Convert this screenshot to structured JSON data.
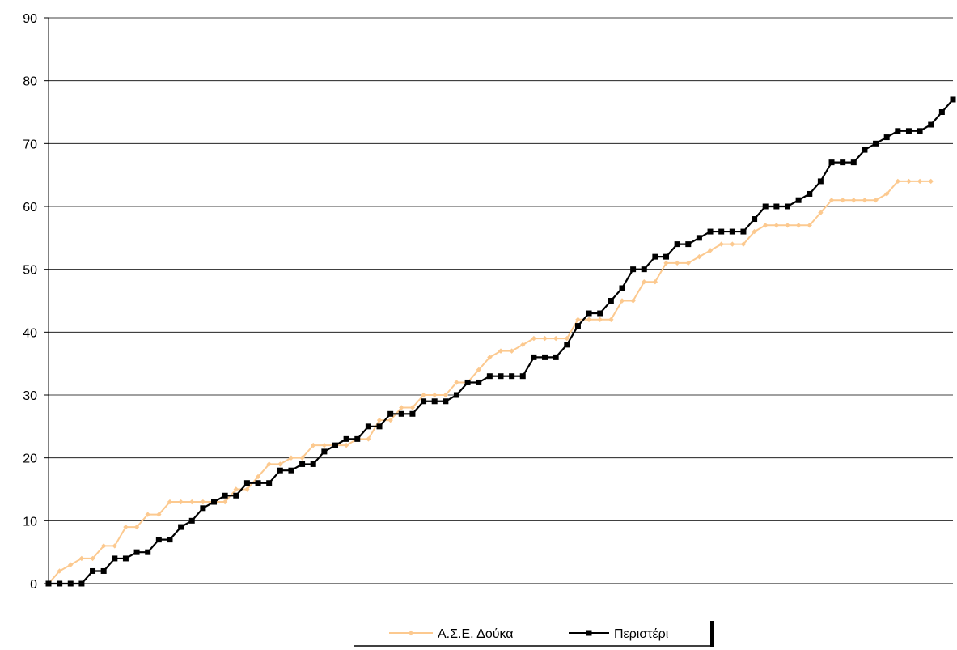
{
  "chart_data": {
    "type": "line",
    "title": "",
    "xlabel": "",
    "ylabel": "",
    "ylim": [
      0,
      90
    ],
    "yticks": [
      0,
      10,
      20,
      30,
      40,
      50,
      60,
      70,
      80,
      90
    ],
    "grid": "horizontal",
    "legend": "bottom-center",
    "series": [
      {
        "name": "Α.Σ.Ε. Δούκα",
        "color": "#fcc98f",
        "marker": "diamond",
        "values": [
          0,
          2,
          3,
          4,
          4,
          6,
          6,
          9,
          9,
          11,
          11,
          13,
          13,
          13,
          13,
          13,
          13,
          15,
          15,
          17,
          19,
          19,
          20,
          20,
          22,
          22,
          22,
          22,
          23,
          23,
          26,
          26,
          28,
          28,
          30,
          30,
          30,
          32,
          32,
          34,
          36,
          37,
          37,
          38,
          39,
          39,
          39,
          39,
          42,
          42,
          42,
          42,
          45,
          45,
          48,
          48,
          51,
          51,
          51,
          52,
          53,
          54,
          54,
          54,
          56,
          57,
          57,
          57,
          57,
          57,
          59,
          61,
          61,
          61,
          61,
          61,
          62,
          64,
          64,
          64,
          64
        ]
      },
      {
        "name": "Περιστέρι",
        "color": "#000000",
        "marker": "square",
        "values": [
          0,
          0,
          0,
          0,
          2,
          2,
          4,
          4,
          5,
          5,
          7,
          7,
          9,
          10,
          12,
          13,
          14,
          14,
          16,
          16,
          16,
          18,
          18,
          19,
          19,
          21,
          22,
          23,
          23,
          25,
          25,
          27,
          27,
          27,
          29,
          29,
          29,
          30,
          32,
          32,
          33,
          33,
          33,
          33,
          36,
          36,
          36,
          38,
          41,
          43,
          43,
          45,
          47,
          50,
          50,
          52,
          52,
          54,
          54,
          55,
          56,
          56,
          56,
          56,
          58,
          60,
          60,
          60,
          61,
          62,
          64,
          67,
          67,
          67,
          69,
          70,
          71,
          72,
          72,
          72,
          73,
          75,
          77
        ]
      }
    ]
  }
}
